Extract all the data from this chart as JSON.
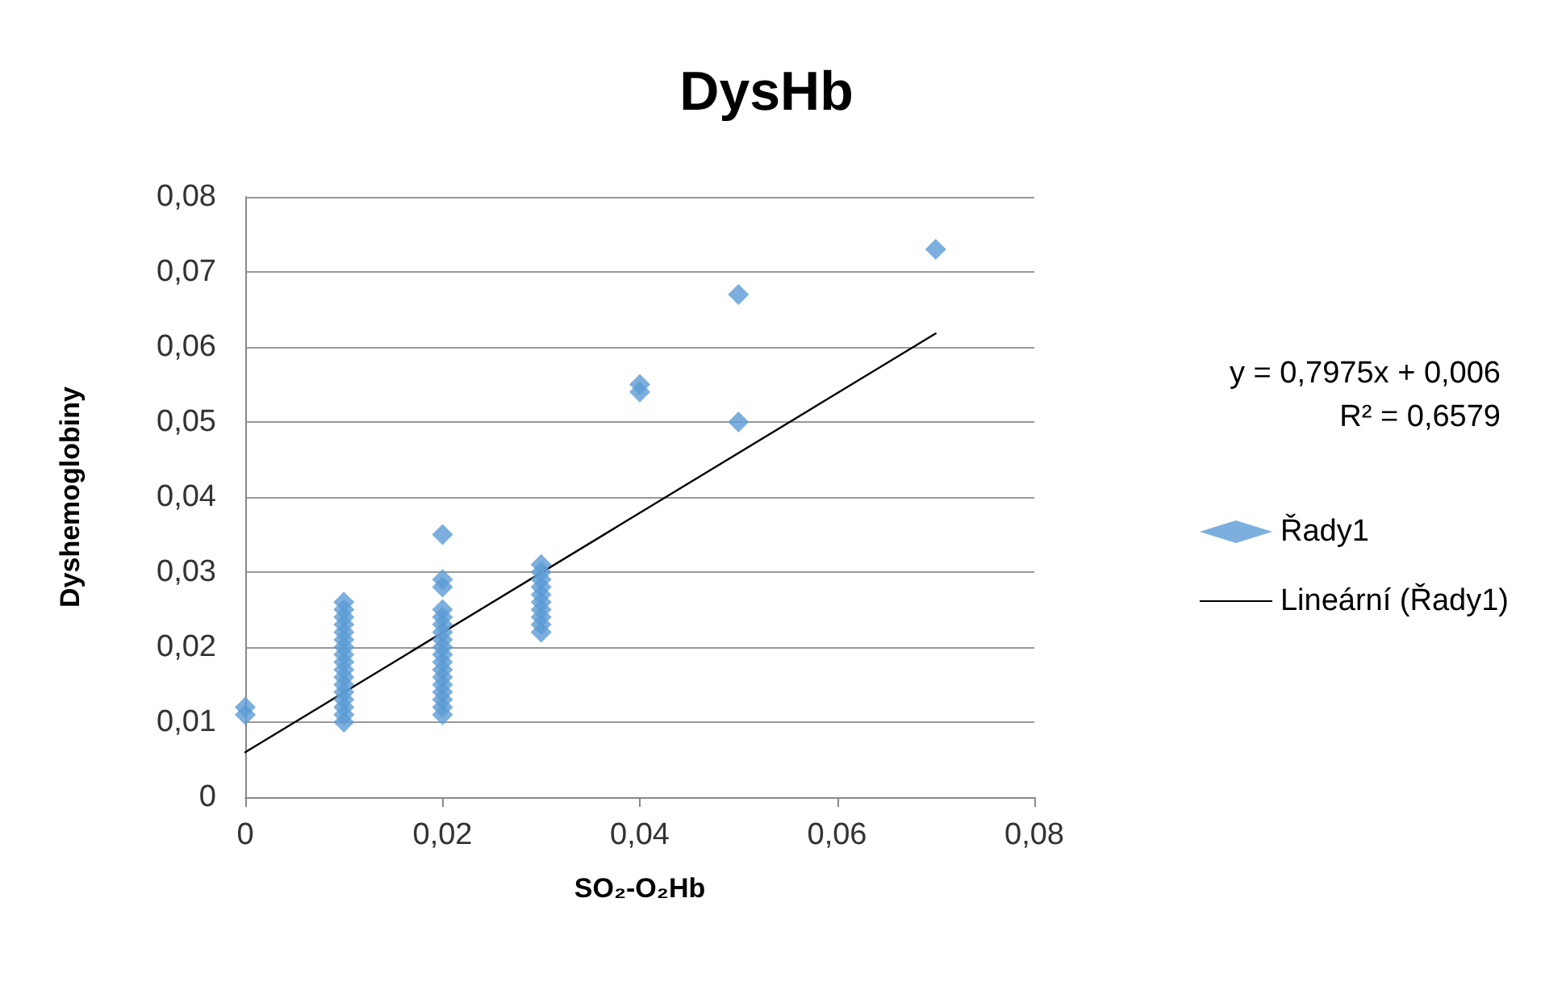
{
  "chart_data": {
    "type": "scatter",
    "title": "DysHb",
    "xlabel": "SO₂-O₂Hb",
    "ylabel": "Dyshemoglobiny",
    "annotations": [
      "y = 0,7975x + 0,006",
      "R² = 0,6579"
    ],
    "xlim": [
      0,
      0.08
    ],
    "ylim": [
      0,
      0.08
    ],
    "xticks": [
      0,
      {
        "value": 0.02,
        "label": "0,02"
      },
      {
        "value": 0.04,
        "label": "0,04"
      },
      {
        "value": 0.06,
        "label": "0,06"
      },
      {
        "value": 0.08,
        "label": "0,08"
      }
    ],
    "yticks": [
      0,
      {
        "value": 0.01,
        "label": "0,01"
      },
      {
        "value": 0.02,
        "label": "0,02"
      },
      {
        "value": 0.03,
        "label": "0,03"
      },
      {
        "value": 0.04,
        "label": "0,04"
      },
      {
        "value": 0.05,
        "label": "0,05"
      },
      {
        "value": 0.06,
        "label": "0,06"
      },
      {
        "value": 0.07,
        "label": "0,07"
      },
      {
        "value": 0.08,
        "label": "0,08"
      }
    ],
    "grid": "y",
    "legend": "right",
    "marker": "diamond",
    "series": [
      {
        "name": "Řady1",
        "color": "#5b9bd5",
        "x": [
          0,
          0,
          0.01,
          0.01,
          0.01,
          0.01,
          0.01,
          0.01,
          0.01,
          0.01,
          0.01,
          0.01,
          0.01,
          0.01,
          0.01,
          0.01,
          0.01,
          0.01,
          0.01,
          0.02,
          0.02,
          0.02,
          0.02,
          0.02,
          0.02,
          0.02,
          0.02,
          0.02,
          0.02,
          0.02,
          0.02,
          0.02,
          0.02,
          0.02,
          0.02,
          0.02,
          0.02,
          0.03,
          0.03,
          0.03,
          0.03,
          0.03,
          0.03,
          0.03,
          0.03,
          0.03,
          0.03,
          0.04,
          0.04,
          0.05,
          0.05,
          0.07
        ],
        "values": [
          0.011,
          0.012,
          0.01,
          0.011,
          0.012,
          0.013,
          0.014,
          0.015,
          0.016,
          0.017,
          0.018,
          0.019,
          0.02,
          0.021,
          0.022,
          0.023,
          0.024,
          0.025,
          0.026,
          0.011,
          0.012,
          0.013,
          0.014,
          0.015,
          0.016,
          0.017,
          0.018,
          0.019,
          0.02,
          0.021,
          0.022,
          0.023,
          0.024,
          0.025,
          0.028,
          0.029,
          0.035,
          0.022,
          0.023,
          0.024,
          0.025,
          0.026,
          0.027,
          0.028,
          0.029,
          0.03,
          0.031,
          0.054,
          0.055,
          0.05,
          0.067,
          0.073
        ]
      },
      {
        "name": "Lineární (Řady1)",
        "type": "line",
        "color": "#000000",
        "marker": "none",
        "line_style": "solid",
        "x": [
          0,
          0.07
        ],
        "values": [
          0.006,
          0.0618
        ]
      }
    ]
  }
}
